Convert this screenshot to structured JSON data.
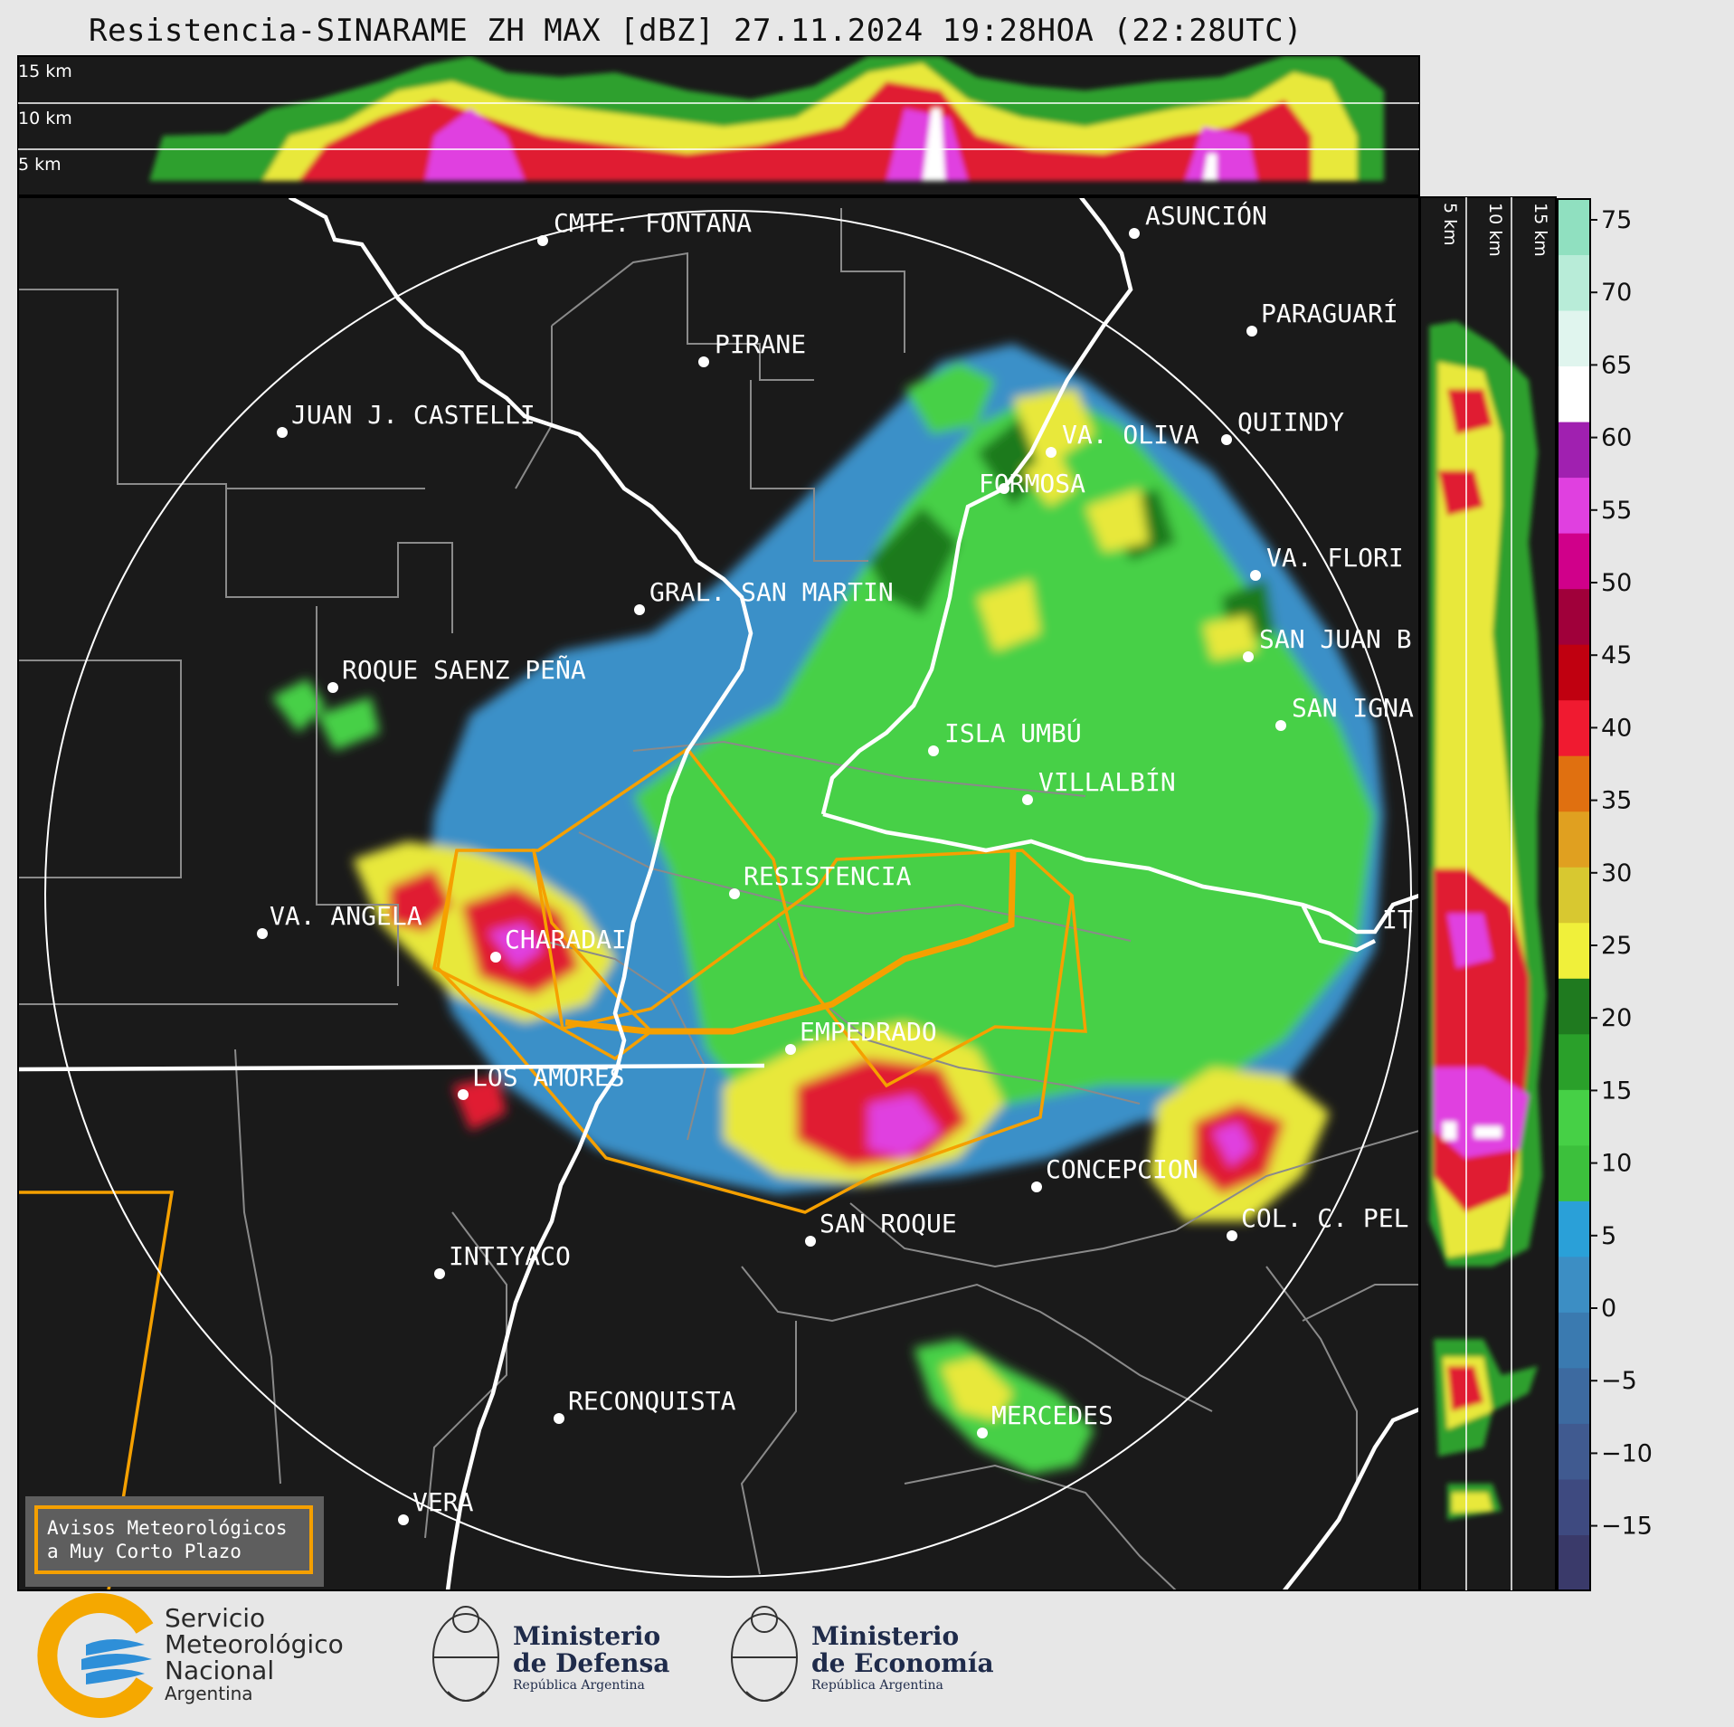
{
  "title": "Resistencia-SINARAME ZH MAX [dBZ] 27.11.2024 19:28HOA (22:28UTC)",
  "top_profile_labels": [
    "15 km",
    "10 km",
    "5 km"
  ],
  "side_profile_labels": [
    "5 km",
    "10 km",
    "15 km"
  ],
  "colorbar": {
    "ticks": [
      "75",
      "70",
      "65",
      "60",
      "55",
      "50",
      "45",
      "40",
      "35",
      "30",
      "25",
      "20",
      "15",
      "10",
      "5",
      "0",
      "−5",
      "−10",
      "−15"
    ],
    "colors": [
      "#3a3a6a",
      "#3e4a80",
      "#405a90",
      "#3d6aa0",
      "#3a7ab0",
      "#3c8ec4",
      "#2aa0d8",
      "#3cc03c",
      "#46d046",
      "#2aa02a",
      "#1f7a1f",
      "#f0f03a",
      "#d8c830",
      "#e0a020",
      "#e07010",
      "#f01a30",
      "#c00010",
      "#a0003a",
      "#d0008a",
      "#e040e0",
      "#a020b0",
      "#ffffff",
      "#e0f5ee",
      "#b8ecd8",
      "#90e0c0"
    ]
  },
  "places": [
    {
      "name": "CMTE. FONTANA"
    },
    {
      "name": "ASUNCIÓN"
    },
    {
      "name": "PIRANE"
    },
    {
      "name": "PARAGUARÍ"
    },
    {
      "name": "JUAN J. CASTELLI"
    },
    {
      "name": "QUIINDY"
    },
    {
      "name": "VA. OLIVA"
    },
    {
      "name": "FORMOSA"
    },
    {
      "name": "VA. FLORI"
    },
    {
      "name": "GRAL. SAN MARTIN"
    },
    {
      "name": "SAN JUAN B"
    },
    {
      "name": "ROQUE SAENZ PEÑA"
    },
    {
      "name": "SAN IGNA"
    },
    {
      "name": "ISLA UMBÚ"
    },
    {
      "name": "VILLALBÍN"
    },
    {
      "name": "RESISTENCIA"
    },
    {
      "name": "VA. ANGELA"
    },
    {
      "name": "CHARADAI"
    },
    {
      "name": "IT"
    },
    {
      "name": "EMPEDRADO"
    },
    {
      "name": "LOS AMORES"
    },
    {
      "name": "CONCEPCION"
    },
    {
      "name": "SAN ROQUE"
    },
    {
      "name": "COL. C. PEL"
    },
    {
      "name": "INTIYACO"
    },
    {
      "name": "RECONQUISTA"
    },
    {
      "name": "MERCEDES"
    },
    {
      "name": "VERA"
    }
  ],
  "legend_box": {
    "line1": "Avisos Meteorológicos",
    "line2": "a Muy Corto Plazo"
  },
  "footer": {
    "smn": {
      "line1": "Servicio",
      "line2": "Meteorológico",
      "line3": "Nacional",
      "country": "Argentina"
    },
    "defensa": {
      "line1": "Ministerio",
      "line2": "de Defensa",
      "sub": "República Argentina"
    },
    "economia": {
      "line1": "Ministerio",
      "line2": "de Economía",
      "sub": "República Argentina"
    }
  }
}
